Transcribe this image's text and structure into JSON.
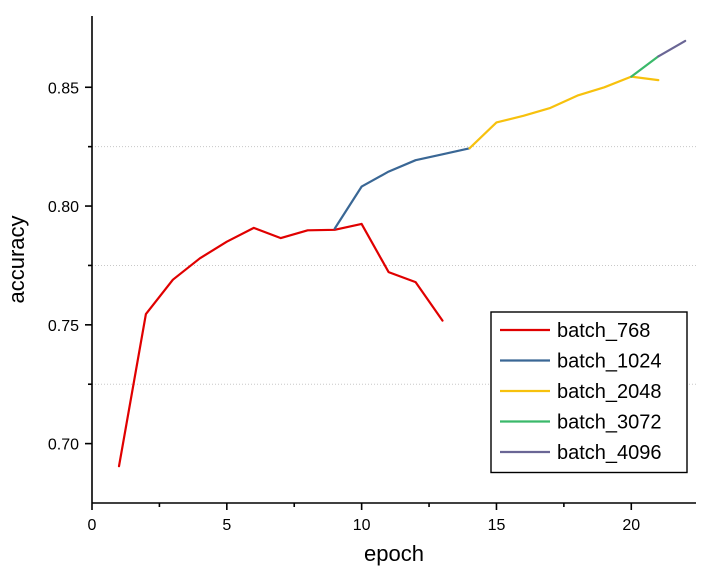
{
  "chart_data": {
    "type": "line",
    "xlabel": "epoch",
    "ylabel": "accuracy",
    "xlim": [
      0,
      22.4
    ],
    "ylim": [
      0.675,
      0.88
    ],
    "x_ticks": [
      0,
      5,
      10,
      15,
      20
    ],
    "y_ticks": [
      0.7,
      0.75,
      0.8,
      0.85
    ],
    "y_minor_grid": [
      0.725,
      0.775,
      0.825
    ],
    "legend_position": "bottom-right",
    "series": [
      {
        "name": "batch_768",
        "color": "#e00000",
        "x": [
          1,
          2,
          3,
          4,
          5,
          6,
          7,
          8,
          9,
          10,
          11,
          12,
          13
        ],
        "y": [
          0.6905,
          0.7545,
          0.769,
          0.778,
          0.785,
          0.7908,
          0.7865,
          0.7898,
          0.79,
          0.7925,
          0.7722,
          0.768,
          0.7518
        ]
      },
      {
        "name": "batch_1024",
        "color": "#3a6795",
        "x": [
          9,
          10,
          11,
          12,
          13,
          14
        ],
        "y": [
          0.7905,
          0.8082,
          0.8145,
          0.8193,
          0.8218,
          0.8243
        ]
      },
      {
        "name": "batch_2048",
        "color": "#f7c10d",
        "x": [
          14,
          15,
          16,
          17,
          18,
          19,
          20,
          21
        ],
        "y": [
          0.8243,
          0.8352,
          0.838,
          0.8413,
          0.8465,
          0.85,
          0.8545,
          0.853
        ]
      },
      {
        "name": "batch_3072",
        "color": "#3ab96a",
        "x": [
          20,
          21
        ],
        "y": [
          0.8545,
          0.863
        ]
      },
      {
        "name": "batch_4096",
        "color": "#6a6695",
        "x": [
          21,
          22
        ],
        "y": [
          0.863,
          0.8695
        ]
      }
    ]
  }
}
